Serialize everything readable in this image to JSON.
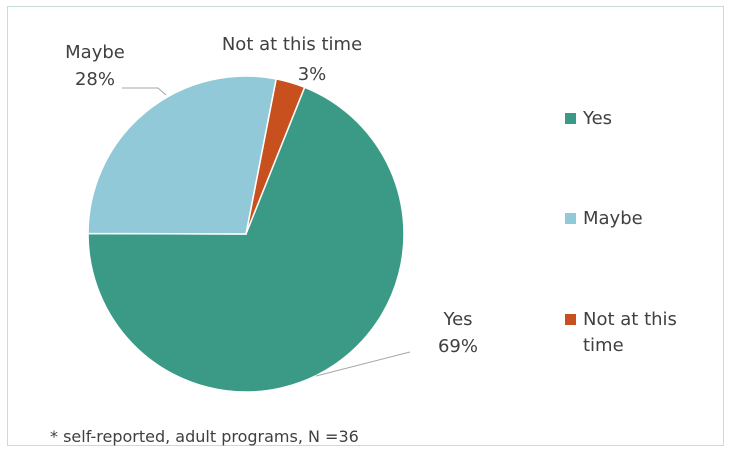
{
  "chart_data": {
    "type": "pie",
    "categories": [
      "Yes",
      "Maybe",
      "Not at this time"
    ],
    "values": [
      69,
      28,
      3
    ],
    "value_suffix": "%",
    "colors": [
      "#3a9a86",
      "#92c9d8",
      "#c8501e"
    ],
    "legend_position": "right",
    "footnote": "* self-reported, adult programs,  N =36"
  }
}
